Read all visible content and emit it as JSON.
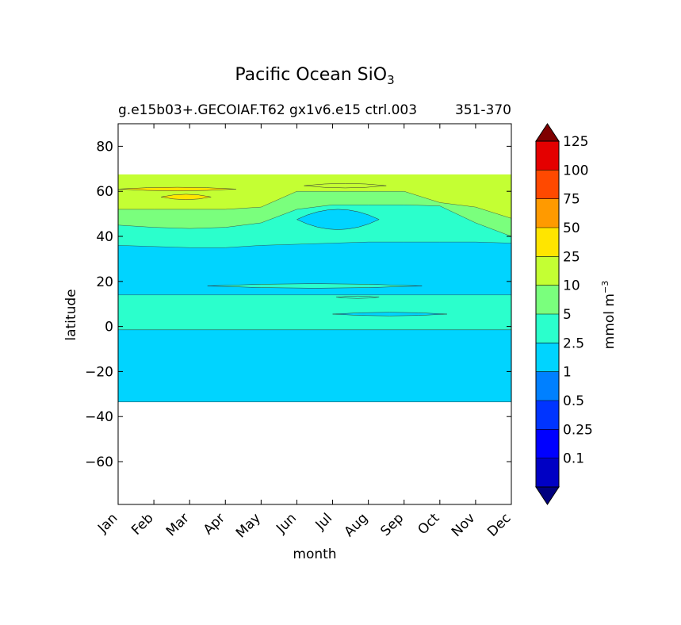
{
  "chart_data": {
    "type": "filled-contour",
    "title": "Pacific Ocean SiO",
    "title_subscript": "3",
    "subtitle_left": "g.e15b03+.GECOIAF.T62 gx1v6.e15 ctrl.003",
    "subtitle_right": "351-370",
    "xlabel": "month",
    "ylabel": "latitude",
    "x_ticks": [
      "Jan",
      "Feb",
      "Mar",
      "Apr",
      "May",
      "Jun",
      "Jul",
      "Aug",
      "Sep",
      "Oct",
      "Nov",
      "Dec"
    ],
    "y_ticks": [
      -60,
      -40,
      -20,
      0,
      20,
      40,
      60,
      80
    ],
    "y_tick_labels": [
      "−60",
      "−40",
      "−20",
      "0",
      "20",
      "40",
      "60",
      "80"
    ],
    "xlim": [
      0,
      11
    ],
    "ylim": [
      -79,
      90
    ],
    "data_lat_range": [
      -33.5,
      67.5
    ],
    "colorbar": {
      "label": "mmol m",
      "label_exponent": "−3",
      "levels": [
        0.1,
        0.25,
        0.5,
        1,
        2.5,
        5,
        10,
        25,
        50,
        75,
        100,
        125
      ],
      "level_labels": [
        "0.1",
        "0.25",
        "0.5",
        "1",
        "2.5",
        "5",
        "10",
        "25",
        "50",
        "75",
        "100",
        "125"
      ],
      "colors": [
        "#00007f",
        "#0000c4",
        "#0000ff",
        "#0034ff",
        "#0080ff",
        "#00d4ff",
        "#2bffcc",
        "#7aff7d",
        "#c4ff33",
        "#ffe500",
        "#ff9a00",
        "#ff4900",
        "#e40000",
        "#7f0000"
      ],
      "extend": "both"
    },
    "bands": [
      {
        "level": "1-2.5",
        "color": "#00d4ff",
        "lat_south": -33.5,
        "lat_north": -1.5
      },
      {
        "level": "2.5-5",
        "color": "#2bffcc",
        "lat_south": -1.5,
        "lat_north": 14
      },
      {
        "level": "1-2.5",
        "color": "#00d4ff",
        "lat_south": 14,
        "lat_north_by_month": [
          36,
          35.5,
          35,
          35,
          36,
          36.5,
          37,
          37.5,
          37.5,
          37.5,
          37.5,
          37
        ]
      },
      {
        "level": "2.5-5",
        "color": "#2bffcc",
        "lat_north_by_month": [
          45,
          44,
          43.5,
          44,
          46,
          52,
          54,
          54,
          54,
          53.5,
          46,
          40
        ]
      },
      {
        "level": "5-10",
        "color": "#7aff7d",
        "lat_north_by_month": [
          52,
          52,
          52,
          52,
          53,
          60,
          60,
          60,
          60,
          55,
          53,
          48
        ]
      },
      {
        "level": "10-25",
        "color": "#c4ff33",
        "lat_north": 67.5
      }
    ],
    "features": [
      {
        "level": "25-50",
        "color": "#ffe500",
        "month_start": 1.2,
        "month_end": 2.6,
        "lat_center": 57.5,
        "lat_half_height": 1.2
      },
      {
        "level": "25-50",
        "color": "#ffe500",
        "month_start": 0.0,
        "month_end": 3.3,
        "lat_center": 61,
        "lat_half_height": 0.8
      },
      {
        "level": "10-25",
        "color": "#c4ff33",
        "month_start": 5.2,
        "month_end": 7.5,
        "lat_center": 62.5,
        "lat_half_height": 1.0
      },
      {
        "level": "1-2.5",
        "color": "#00d4ff",
        "month_start": 5.0,
        "month_end": 7.3,
        "lat_center": 47.5,
        "lat_half_height": 4.5
      },
      {
        "level": "2.5-5",
        "color": "#2bffcc",
        "month_start": 2.5,
        "month_end": 8.5,
        "lat_center": 18,
        "lat_half_height": 1.0
      },
      {
        "level": "2.5-5",
        "color": "#2bffcc",
        "month_start": 6.1,
        "month_end": 7.3,
        "lat_center": 13,
        "lat_half_height": 0.5
      },
      {
        "level": "1-2.5",
        "color": "#00d4ff",
        "month_start": 6.0,
        "month_end": 9.2,
        "lat_center": 5.5,
        "lat_half_height": 0.8
      }
    ]
  }
}
